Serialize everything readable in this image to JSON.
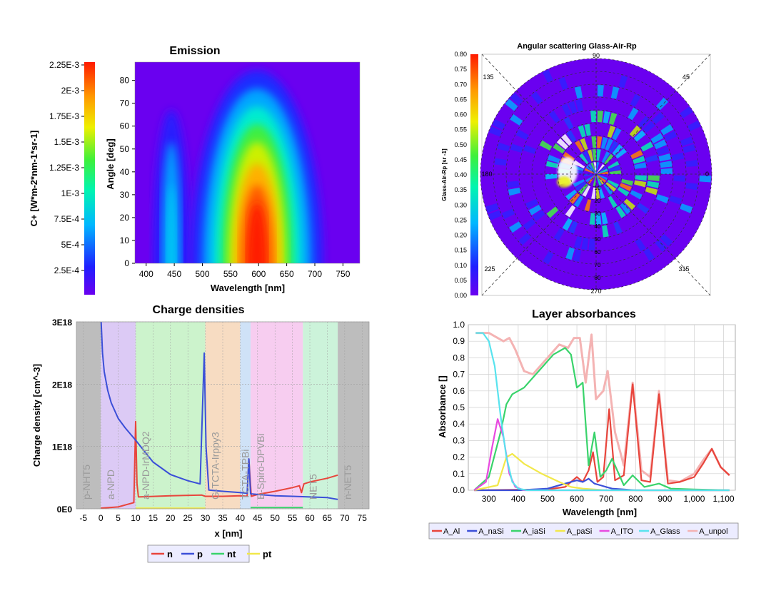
{
  "chart_data": [
    {
      "type": "heatmap",
      "title": "Emission",
      "xlabel": "Wavelength [nm]",
      "ylabel": "Angle [deg]",
      "xlim": [
        380,
        780
      ],
      "ylim": [
        0,
        88
      ],
      "xticks": [
        "400",
        "450",
        "500",
        "550",
        "600",
        "650",
        "700",
        "750"
      ],
      "yticks": [
        "0",
        "10",
        "20",
        "30",
        "40",
        "50",
        "60",
        "70",
        "80"
      ],
      "colorbar_label": "C+ [W*m-2*nm-1*sr-1]",
      "colorbar_ticks": [
        "2.5E-4",
        "5E-4",
        "7.5E-4",
        "1E-3",
        "1.25E-3",
        "1.5E-3",
        "1.75E-3",
        "2E-3",
        "2.25E-3"
      ],
      "peaks": [
        {
          "wavelength": 450,
          "value": 0.00045,
          "angle_extent": 72
        },
        {
          "wavelength": 600,
          "value": 0.00225,
          "angle_extent": 86
        }
      ]
    },
    {
      "type": "heatmap",
      "title": "Angular scattering Glass-Air-Rp",
      "colorbar_label": "Glass-Air-Rp [sr -1]",
      "colorbar_ticks": [
        "0.00",
        "0.05",
        "0.10",
        "0.15",
        "0.20",
        "0.25",
        "0.30",
        "0.35",
        "0.40",
        "0.45",
        "0.50",
        "0.55",
        "0.60",
        "0.65",
        "0.70",
        "0.75",
        "0.80"
      ],
      "angle_labels": {
        "top": "90",
        "upper_left": "135",
        "upper_right": "45",
        "left": "180",
        "right": "0",
        "lower_left": "225",
        "lower_right": "315",
        "bottom": "270"
      },
      "radial_labels": [
        "10",
        "20",
        "30",
        "40",
        "50",
        "60",
        "70",
        "80"
      ]
    },
    {
      "type": "line",
      "title": "Charge densities",
      "xlabel": "x [nm]",
      "ylabel": "Charge density [cm^-3]",
      "xlim": [
        -7,
        77
      ],
      "ylim": [
        0,
        3e+18
      ],
      "xticks": [
        "-5",
        "0",
        "5",
        "10",
        "15",
        "20",
        "25",
        "30",
        "35",
        "40",
        "45",
        "50",
        "55",
        "60",
        "65",
        "70",
        "75"
      ],
      "yticks": [
        "0E0",
        "1E18",
        "2E18",
        "3E18"
      ],
      "layers": [
        {
          "name": "p-NHT5",
          "x0": -7,
          "x1": 0,
          "color": "#bdbdbd"
        },
        {
          "name": "a-NPD",
          "x0": 0,
          "x1": 10,
          "color": "#dccaf5"
        },
        {
          "name": "a-NPD-IrMDQ2",
          "x0": 10,
          "x1": 30,
          "color": "#ccf3cc"
        },
        {
          "name": "G-TCTA-Irppy3",
          "x0": 30,
          "x1": 40,
          "color": "#f7dcc2"
        },
        {
          "name": "TCTA-TPBi",
          "x0": 40,
          "x1": 43,
          "color": "#cfe2f7"
        },
        {
          "name": "B-Spiro-DPVBi",
          "x0": 43,
          "x1": 58,
          "color": "#f7cdf0"
        },
        {
          "name": "NET5",
          "x0": 58,
          "x1": 68,
          "color": "#ccf3da"
        },
        {
          "name": "n-NET5",
          "x0": 68,
          "x1": 77,
          "color": "#bdbdbd"
        }
      ],
      "series": [
        {
          "name": "n",
          "color": "#e8453c",
          "x": [
            0,
            5,
            9.5,
            10,
            10.4,
            10.8,
            20,
            29,
            30,
            35,
            40,
            42,
            42.5,
            43.2,
            45,
            50,
            55,
            57,
            57.6,
            58.3,
            60,
            65,
            68
          ],
          "y": [
            1e+16,
            3e+16,
            1e+17,
            1.4e+18,
            4e+17,
            1.9e+17,
            2.1e+17,
            2.2e+17,
            2e+17,
            2e+17,
            2.1e+17,
            2e+17,
            8e+17,
            2e+17,
            2.3e+17,
            2.8e+17,
            3.4e+17,
            3.7e+17,
            2.6e+17,
            4e+17,
            4.3e+17,
            4.9e+17,
            5.4e+17
          ]
        },
        {
          "name": "p",
          "color": "#3b4fd8",
          "x": [
            0.1,
            0.5,
            1,
            2,
            3,
            5,
            7,
            10,
            15,
            20,
            25,
            28.5,
            29.7,
            30.2,
            31,
            35,
            40,
            42,
            42.5,
            43,
            45,
            50,
            55,
            60,
            65,
            68
          ],
          "y": [
            3e+18,
            2.5e+18,
            2.2e+18,
            1.9e+18,
            1.7e+18,
            1.45e+18,
            1.3e+18,
            1.1e+18,
            7.5e+17,
            5.5e+17,
            4.5e+17,
            4e+17,
            2.5e+18,
            1e+18,
            3e+17,
            2.8e+17,
            2.6e+17,
            2.5e+17,
            8e+17,
            2.4e+17,
            2.3e+17,
            2.1e+17,
            2e+17,
            1.9e+17,
            1.8e+17,
            1.5e+17
          ]
        },
        {
          "name": "nt",
          "color": "#39d36b",
          "x": [
            43,
            58
          ],
          "y": [
            2e+16,
            2e+16
          ]
        },
        {
          "name": "pt",
          "color": "#f2e84a",
          "x": [
            10,
            30
          ],
          "y": [
            1e+16,
            1e+16
          ]
        }
      ]
    },
    {
      "type": "line",
      "title": "Layer absorbances",
      "xlabel": "Wavelength [nm]",
      "ylabel": "Absorbance []",
      "xlim": [
        230,
        1140
      ],
      "ylim": [
        0,
        1
      ],
      "xticks": [
        "300",
        "400",
        "500",
        "600",
        "700",
        "800",
        "900",
        "1,000",
        "1,100"
      ],
      "yticks": [
        "0.0",
        "0.1",
        "0.2",
        "0.3",
        "0.4",
        "0.5",
        "0.6",
        "0.7",
        "0.8",
        "0.9",
        "1.0"
      ],
      "series": [
        {
          "name": "A_Al",
          "color": "#e8453c",
          "x": [
            250,
            500,
            560,
            600,
            620,
            640,
            655,
            670,
            690,
            710,
            730,
            760,
            790,
            820,
            850,
            880,
            910,
            950,
            1000,
            1030,
            1060,
            1090,
            1120
          ],
          "y": [
            0,
            0.005,
            0.02,
            0.08,
            0.05,
            0.12,
            0.23,
            0.05,
            0.08,
            0.49,
            0.06,
            0.09,
            0.64,
            0.06,
            0.05,
            0.58,
            0.04,
            0.05,
            0.08,
            0.16,
            0.25,
            0.14,
            0.09
          ]
        },
        {
          "name": "A_naSi",
          "color": "#3b4fd8",
          "x": [
            250,
            400,
            500,
            560,
            600,
            620,
            640,
            660,
            680,
            700,
            720,
            760,
            800,
            1120
          ],
          "y": [
            0,
            0,
            0.01,
            0.04,
            0.06,
            0.05,
            0.07,
            0.04,
            0.03,
            0.02,
            0.01,
            0.005,
            0,
            0
          ]
        },
        {
          "name": "A_iaSi",
          "color": "#39d36b",
          "x": [
            250,
            300,
            340,
            360,
            380,
            420,
            470,
            520,
            560,
            580,
            600,
            620,
            640,
            660,
            680,
            700,
            720,
            760,
            790,
            830,
            880,
            920,
            1000,
            1120
          ],
          "y": [
            0,
            0.08,
            0.35,
            0.52,
            0.58,
            0.62,
            0.72,
            0.82,
            0.86,
            0.82,
            0.62,
            0.65,
            0.15,
            0.35,
            0.08,
            0.12,
            0.19,
            0.03,
            0.09,
            0.02,
            0.04,
            0.01,
            0.005,
            0
          ]
        },
        {
          "name": "A_paSi",
          "color": "#f2e84a",
          "x": [
            250,
            330,
            360,
            380,
            420,
            480,
            540,
            580,
            620,
            700,
            1120
          ],
          "y": [
            0,
            0.03,
            0.2,
            0.22,
            0.16,
            0.1,
            0.05,
            0.02,
            0.01,
            0,
            0
          ]
        },
        {
          "name": "A_ITO",
          "color": "#e84ae0",
          "x": [
            250,
            290,
            310,
            330,
            350,
            370,
            390,
            420,
            1120
          ],
          "y": [
            0,
            0.05,
            0.25,
            0.43,
            0.32,
            0.1,
            0.02,
            0,
            0
          ]
        },
        {
          "name": "A_Glass",
          "color": "#58e3ee",
          "x": [
            255,
            280,
            300,
            320,
            340,
            360,
            380,
            400,
            430,
            1120
          ],
          "y": [
            0.95,
            0.95,
            0.9,
            0.75,
            0.45,
            0.2,
            0.05,
            0.01,
            0,
            0
          ]
        },
        {
          "name": "A_unpol",
          "color": "#f4b3b3",
          "x": [
            255,
            300,
            330,
            350,
            370,
            390,
            420,
            450,
            500,
            540,
            570,
            590,
            610,
            630,
            650,
            665,
            690,
            705,
            730,
            760,
            790,
            820,
            850,
            880,
            910,
            950,
            1000,
            1030,
            1060,
            1090,
            1120
          ],
          "y": [
            0.95,
            0.95,
            0.92,
            0.9,
            0.92,
            0.85,
            0.72,
            0.7,
            0.8,
            0.88,
            0.86,
            0.92,
            0.92,
            0.65,
            0.94,
            0.55,
            0.6,
            0.72,
            0.35,
            0.15,
            0.65,
            0.12,
            0.08,
            0.6,
            0.06,
            0.05,
            0.1,
            0.18,
            0.25,
            0.14,
            0.09
          ]
        }
      ]
    }
  ]
}
